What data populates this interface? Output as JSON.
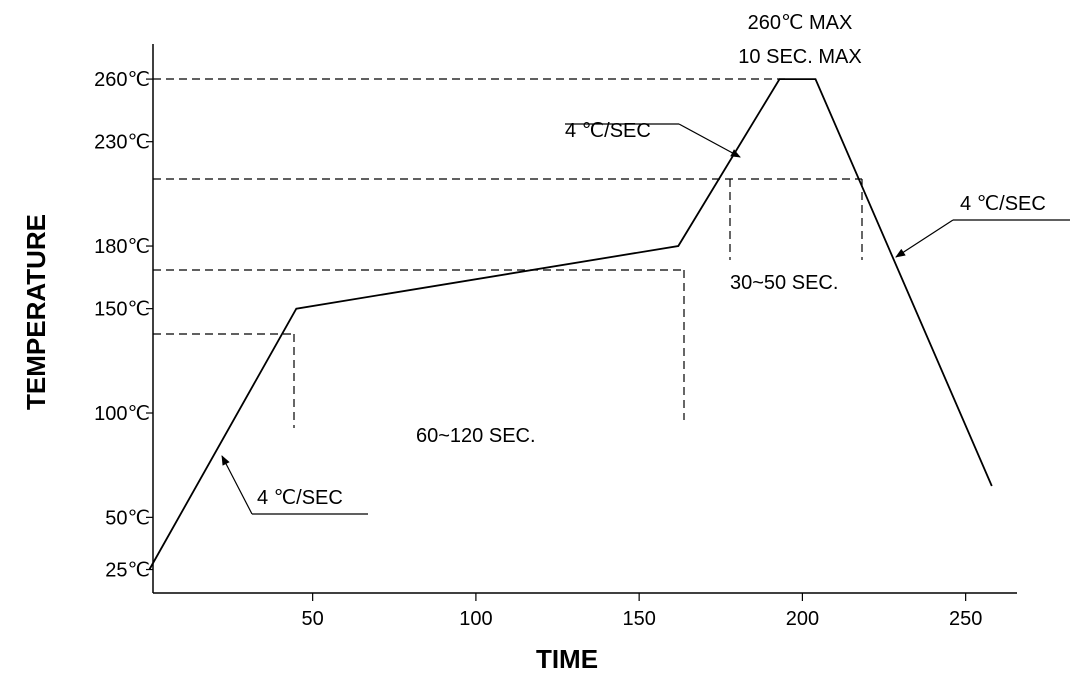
{
  "chart_data": {
    "type": "line",
    "xlabel": "TIME",
    "ylabel": "TEMPERATURE",
    "x_ticks": [
      {
        "value": 50,
        "label": "50"
      },
      {
        "value": 100,
        "label": "100"
      },
      {
        "value": 150,
        "label": "150"
      },
      {
        "value": 200,
        "label": "200"
      },
      {
        "value": 250,
        "label": "250"
      }
    ],
    "y_ticks": [
      {
        "value": 25,
        "label": "25℃"
      },
      {
        "value": 50,
        "label": "50℃"
      },
      {
        "value": 100,
        "label": "100℃"
      },
      {
        "value": 150,
        "label": "150℃"
      },
      {
        "value": 180,
        "label": "180℃"
      },
      {
        "value": 230,
        "label": "230℃"
      },
      {
        "value": 260,
        "label": "260℃"
      }
    ],
    "xlim": [
      0,
      270
    ],
    "ylim": [
      0,
      280
    ],
    "grid": false,
    "series": [
      {
        "points": [
          {
            "x": 0,
            "y": 25
          },
          {
            "x": 45,
            "y": 150
          },
          {
            "x": 162,
            "y": 180
          },
          {
            "x": 193,
            "y": 260
          },
          {
            "x": 204,
            "y": 260
          },
          {
            "x": 258,
            "y": 65
          }
        ]
      }
    ],
    "annotations": {
      "peak_line1": "260℃ MAX",
      "peak_line2": "10 SEC. MAX",
      "ramp_up_top": "4 ℃/SEC",
      "ramp_down": "4 ℃/SEC",
      "ramp_up_bottom": "4 ℃/SEC",
      "reflow_window": "30~50 SEC.",
      "soak_window": "60~120 SEC."
    }
  }
}
